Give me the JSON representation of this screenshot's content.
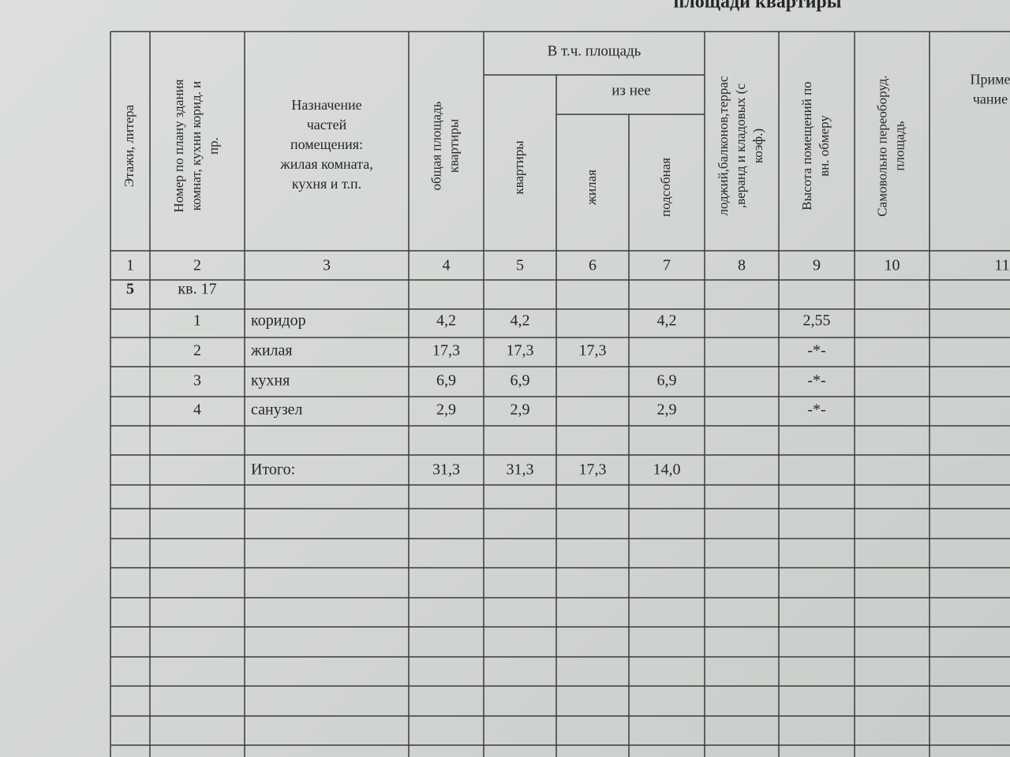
{
  "header": {
    "title": "площади квартиры"
  },
  "table": {
    "columns": [
      [
        "Этажи, литера"
      ],
      [
        "Номер по плану здания",
        "комнат, кухни корид. и",
        "пр."
      ],
      [
        "Назначение",
        "частей",
        "помещения:",
        "жилая комната,",
        "кухня и т.п."
      ],
      [
        "общая площадь",
        "квартиры"
      ],
      [
        "квартиры"
      ],
      [
        "жилая"
      ],
      [
        "подсобная"
      ],
      [
        "лоджий,балконов,террас",
        ",веранд и кладовых (с",
        "коэф.)"
      ],
      [
        "Высота помещений по",
        "вн. обмеру"
      ],
      [
        "Самовольно переоборуд.",
        "площадь"
      ],
      [
        "Приме",
        "чание"
      ]
    ],
    "groups": [
      "В т.ч. площадь",
      "из нее"
    ],
    "numbers": [
      "1",
      "2",
      "3",
      "4",
      "5",
      "6",
      "7",
      "8",
      "9",
      "10",
      "11"
    ],
    "rows": [
      [
        "5",
        "кв. 17",
        null,
        null,
        null,
        null,
        null,
        null,
        null,
        null,
        null
      ],
      [
        null,
        "1",
        "коридор",
        "4,2",
        "4,2",
        null,
        "4,2",
        null,
        "2,55",
        null,
        null
      ],
      [
        null,
        "2",
        "жилая",
        "17,3",
        "17,3",
        "17,3",
        null,
        null,
        "-*-",
        null,
        null
      ],
      [
        null,
        "3",
        "кухня",
        "6,9",
        "6,9",
        null,
        "6,9",
        null,
        "-*-",
        null,
        null
      ],
      [
        null,
        "4",
        "санузел",
        "2,9",
        "2,9",
        null,
        "2,9",
        null,
        "-*-",
        null,
        null
      ],
      [
        null,
        null,
        "Итого:",
        "31,3",
        "31,3",
        "17,3",
        "14,0",
        null,
        null,
        null,
        null
      ]
    ]
  }
}
